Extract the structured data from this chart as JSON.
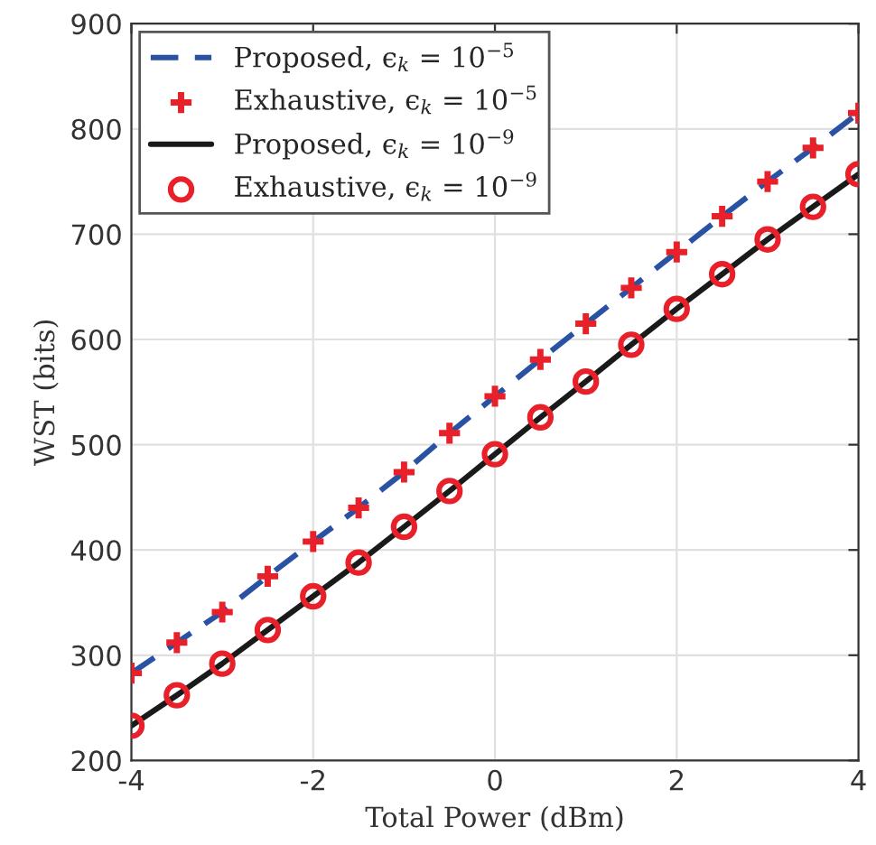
{
  "chart_data": {
    "type": "line",
    "xlabel": "Total Power (dBm)",
    "ylabel": "WST (bits)",
    "x": [
      -4,
      -3.5,
      -3,
      -2.5,
      -2,
      -1.5,
      -1,
      -0.5,
      0,
      0.5,
      1,
      1.5,
      2,
      2.5,
      3,
      3.5,
      4
    ],
    "series": [
      {
        "name": "Proposed, ϵ$_{k}$ = 10$^{−5}$",
        "color": "#2a52a3",
        "line_style": "dashed",
        "marker": "none",
        "values": [
          283,
          312,
          341,
          375,
          408,
          440,
          474,
          511,
          546,
          581,
          615,
          649,
          683,
          717,
          750,
          782,
          815
        ]
      },
      {
        "name": "Exhaustive, ϵ$_{k}$ = 10$^{−5}$",
        "type": "scatter",
        "color": "#e8202a",
        "marker": "cross",
        "values": [
          283,
          312,
          341,
          375,
          408,
          440,
          474,
          511,
          546,
          581,
          615,
          649,
          683,
          717,
          750,
          782,
          815
        ]
      },
      {
        "name": "Proposed, ϵ$_{k}$ = 10$^{−9}$",
        "color": "#1a1a1a",
        "line_style": "solid",
        "marker": "none",
        "values": [
          233,
          262,
          292,
          324,
          356,
          388,
          422,
          456,
          491,
          526,
          560,
          595,
          629,
          662,
          695,
          726,
          757
        ]
      },
      {
        "name": "Exhaustive, ϵ$_{k}$ = 10$^{−9}$",
        "type": "scatter",
        "color": "#e8202a",
        "marker": "circle",
        "values": [
          233,
          262,
          292,
          324,
          356,
          388,
          422,
          456,
          491,
          526,
          560,
          595,
          629,
          662,
          695,
          726,
          757
        ]
      }
    ],
    "xlim": [
      -4,
      4
    ],
    "xticks": [
      -4,
      -2,
      0,
      2,
      4
    ],
    "ylim": [
      200,
      900
    ],
    "yticks": [
      200,
      300,
      400,
      500,
      600,
      700,
      800,
      900
    ],
    "grid": true,
    "legend": "top left"
  }
}
